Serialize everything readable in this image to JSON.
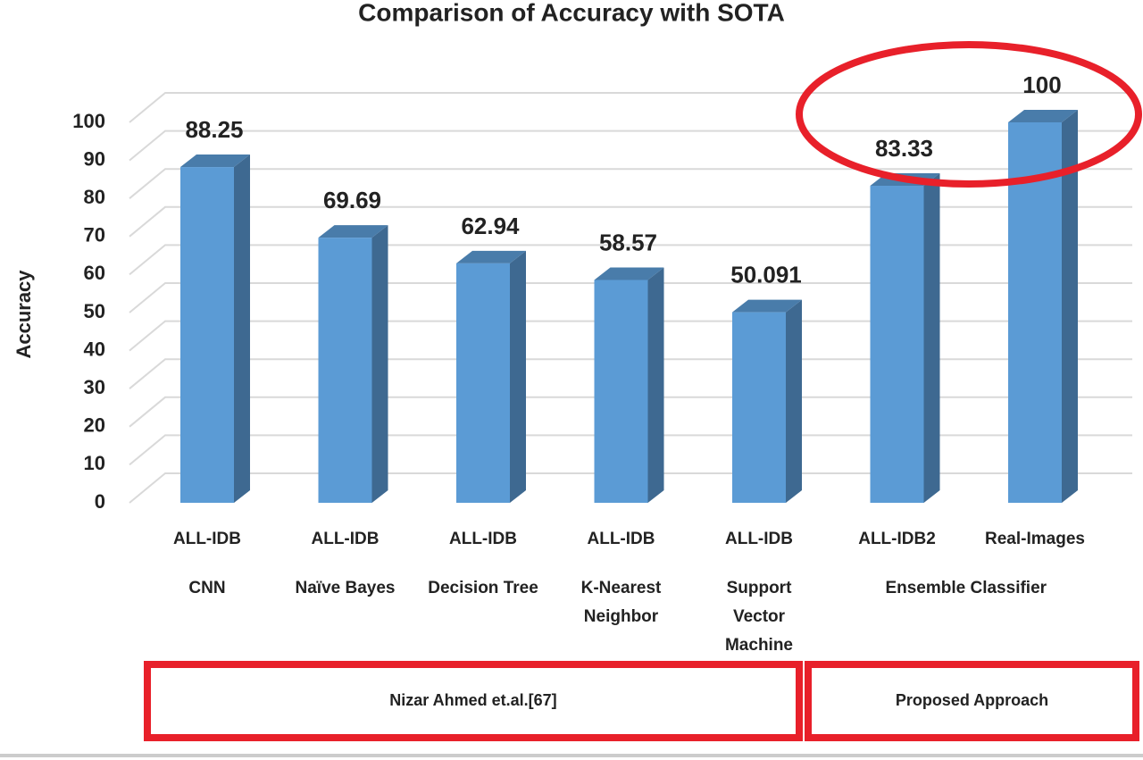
{
  "chart_data": {
    "type": "bar3d",
    "title": "Comparison of Accuracy with SOTA",
    "y_label": "Accuracy",
    "categories": [
      "ALL-IDB",
      "ALL-IDB",
      "ALL-IDB",
      "ALL-IDB",
      "ALL-IDB",
      "ALL-IDB2",
      "Real-Images"
    ],
    "methods": [
      "CNN",
      "Naïve Bayes",
      "Decision Tree",
      "K-Nearest Neighbor",
      "Support Vector Machine",
      "Ensemble Classifier",
      null
    ],
    "groups": [
      "Nizar Ahmed et.al.[67]",
      "Proposed Approach"
    ],
    "values": [
      88.25,
      69.69,
      62.94,
      58.57,
      50.091,
      83.33,
      100
    ],
    "color": "#5b9bd5",
    "ylim": [
      0,
      100
    ],
    "yticks": [
      0,
      10,
      20,
      30,
      40,
      50,
      60,
      70,
      80,
      90,
      100
    ],
    "grid": true
  }
}
